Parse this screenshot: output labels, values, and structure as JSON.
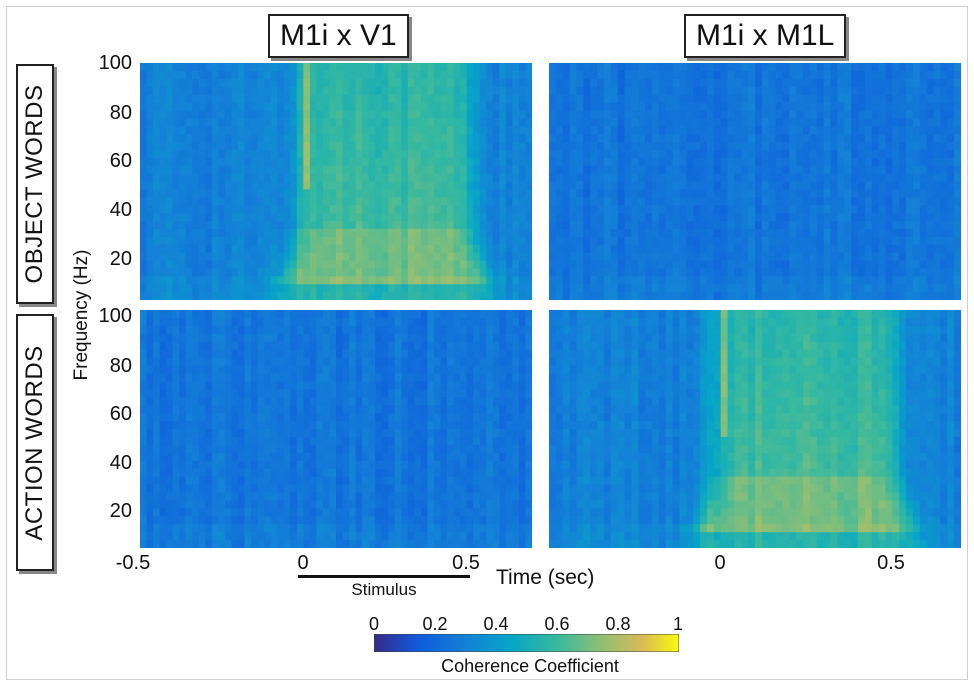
{
  "chart_data": {
    "type": "heatmap",
    "colormap": "parula",
    "col_titles": [
      "M1i x V1",
      "M1i x M1L"
    ],
    "row_titles": [
      "OBJECT WORDS",
      "ACTION WORDS"
    ],
    "ylabel": "Frequency (Hz)",
    "xlabel": "Time (sec)",
    "xlim": [
      -0.5,
      0.7
    ],
    "ylim": [
      5,
      100
    ],
    "yticks": [
      "100",
      "80",
      "60",
      "40",
      "20"
    ],
    "xticks_left": [
      "-0.5",
      "0",
      "0.5"
    ],
    "xticks_right": [
      "0",
      "0.5"
    ],
    "stimulus": {
      "label": "Stimulus",
      "start": 0,
      "end": 0.5
    },
    "colorbar": {
      "label": "Coherence Coefficient",
      "range": [
        0,
        1
      ],
      "ticks": [
        "0",
        "0.2",
        "0.4",
        "0.6",
        "0.8",
        "1"
      ]
    },
    "panels": [
      {
        "row": "OBJECT WORDS",
        "col": "M1i x V1",
        "baseline": 0.3,
        "peak": 0.7,
        "response": true
      },
      {
        "row": "OBJECT WORDS",
        "col": "M1i x M1L",
        "baseline": 0.25,
        "peak": 0.3,
        "response": false
      },
      {
        "row": "ACTION WORDS",
        "col": "M1i x V1",
        "baseline": 0.25,
        "peak": 0.3,
        "response": false
      },
      {
        "row": "ACTION WORDS",
        "col": "M1i x M1L",
        "baseline": 0.3,
        "peak": 0.7,
        "response": true
      }
    ]
  }
}
